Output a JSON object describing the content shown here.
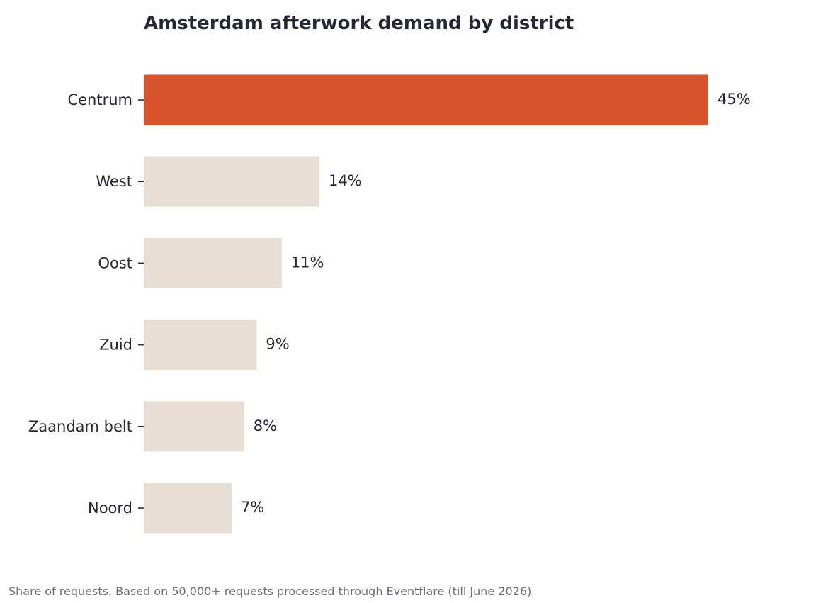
{
  "chart_data": {
    "type": "bar",
    "orientation": "horizontal",
    "title": "Amsterdam afterwork demand by district",
    "categories": [
      "Centrum",
      "West",
      "Oost",
      "Zuid",
      "Zaandam belt",
      "Noord"
    ],
    "values": [
      45,
      14,
      11,
      9,
      8,
      7
    ],
    "value_labels": [
      "45%",
      "14%",
      "11%",
      "9%",
      "8%",
      "7%"
    ],
    "unit": "%",
    "xlim": [
      0,
      45
    ],
    "grid": false,
    "highlight_category": "Centrum",
    "colors": {
      "highlight": "#d9532c",
      "default": "#e8ddd3",
      "text": "#252733"
    }
  },
  "footer": {
    "note": "Share of requests. Based on 50,000+ requests processed through Eventflare (till June 2026)"
  }
}
